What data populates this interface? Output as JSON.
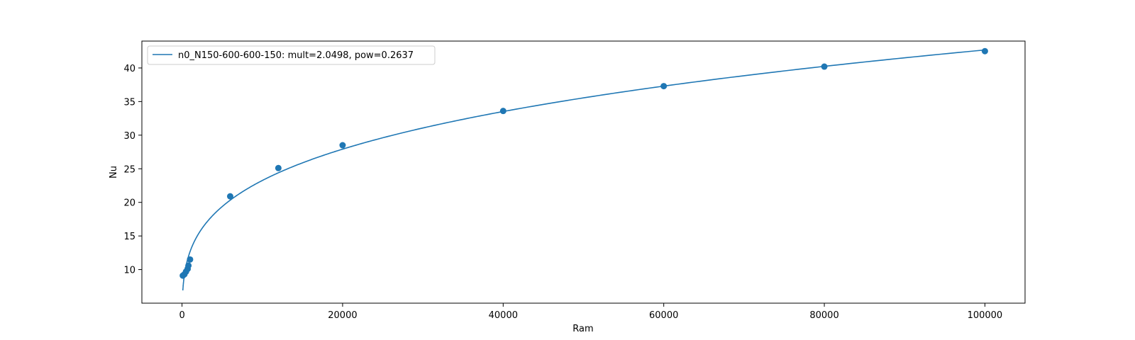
{
  "chart_data": {
    "type": "scatter",
    "xlabel": "Ram",
    "ylabel": "Nu",
    "xlim": [
      -5000,
      105000
    ],
    "ylim": [
      5,
      44
    ],
    "x_ticks": [
      0,
      20000,
      40000,
      60000,
      80000,
      100000
    ],
    "y_ticks": [
      10,
      15,
      20,
      25,
      30,
      35,
      40
    ],
    "grid": false,
    "legend_position": "upper-left",
    "color": "#1f77b4",
    "series": [
      {
        "name": "n0_N150-600-600-150: mult=2.0498, pow=0.2637",
        "kind": "fit-line",
        "mult": 2.0498,
        "pow": 0.2637,
        "x_range": [
          100,
          100000
        ]
      },
      {
        "kind": "points",
        "x": [
          100,
          300,
          500,
          700,
          800,
          1000,
          6000,
          12000,
          20000,
          40000,
          60000,
          80000,
          100000
        ],
        "y": [
          9.1,
          9.3,
          9.7,
          10.1,
          10.6,
          11.5,
          20.9,
          25.1,
          28.5,
          33.6,
          37.3,
          40.2,
          42.5
        ]
      }
    ]
  }
}
